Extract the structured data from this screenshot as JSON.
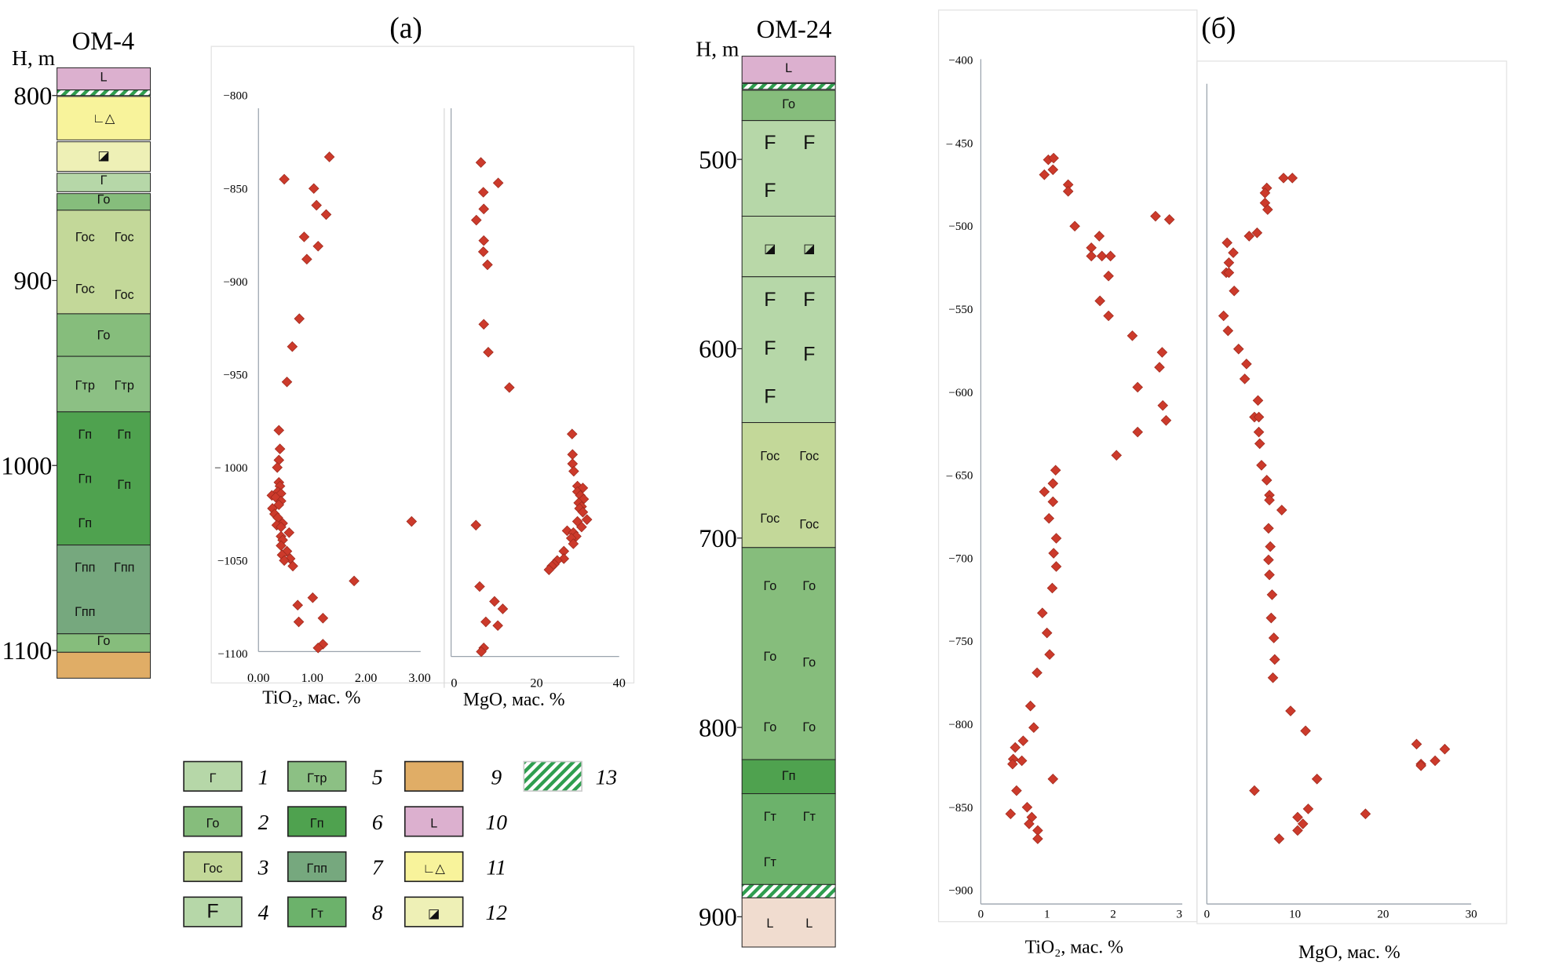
{
  "panel_labels": {
    "a": "(a)",
    "b": "(б)"
  },
  "columns": [
    {
      "name": "ОМ-4",
      "depth_label": "H, m",
      "ticks": [
        800,
        900,
        1000,
        1100
      ],
      "layers": [
        {
          "type": 10,
          "top": 785,
          "bottom": 797
        },
        {
          "type": 13,
          "top": 797,
          "bottom": 800
        },
        {
          "type": 11,
          "top": 800.5,
          "bottom": 824
        },
        {
          "type": 12,
          "top": 825,
          "bottom": 841
        },
        {
          "type": 1,
          "top": 842,
          "bottom": 852
        },
        {
          "type": 2,
          "top": 853,
          "bottom": 862
        },
        {
          "type": 3,
          "top": 862,
          "bottom": 918
        },
        {
          "type": 2,
          "top": 918,
          "bottom": 941
        },
        {
          "type": 5,
          "top": 941,
          "bottom": 971
        },
        {
          "type": 6,
          "top": 971,
          "bottom": 1043
        },
        {
          "type": 7,
          "top": 1043,
          "bottom": 1091
        },
        {
          "type": 2,
          "top": 1091,
          "bottom": 1101
        },
        {
          "type": 9,
          "top": 1101,
          "bottom": 1115
        }
      ]
    },
    {
      "name": "ОМ-24",
      "depth_label": "H, m",
      "ticks": [
        500,
        600,
        700,
        800,
        900
      ],
      "layers": [
        {
          "type": 10,
          "top": 445.5,
          "bottom": 459.5
        },
        {
          "type": 13,
          "top": 460,
          "bottom": 463
        },
        {
          "type": 2,
          "top": 463.5,
          "bottom": 479.5
        },
        {
          "type": 4,
          "top": 479.5,
          "bottom": 530
        },
        {
          "type": 12,
          "top": 530,
          "bottom": 562,
          "fill": "#b9d8a8"
        },
        {
          "type": 4,
          "top": 562,
          "bottom": 639
        },
        {
          "type": 3,
          "top": 639,
          "bottom": 705
        },
        {
          "type": 2,
          "top": 705,
          "bottom": 817
        },
        {
          "type": 6,
          "top": 817,
          "bottom": 835
        },
        {
          "type": 8,
          "top": 835,
          "bottom": 883
        },
        {
          "type": 13,
          "top": 883,
          "bottom": 890
        },
        {
          "type": 10,
          "top": 890,
          "bottom": 916,
          "fill": "#f0dccf"
        }
      ]
    }
  ],
  "legend": [
    {
      "num": "1",
      "symbol": "Г",
      "color": "#b6d7a8"
    },
    {
      "num": "2",
      "symbol": "Го",
      "color": "#86bd7c"
    },
    {
      "num": "3",
      "symbol": "Гос",
      "color": "#c3d899"
    },
    {
      "num": "4",
      "symbol": "F",
      "color": "#b6d7a8"
    },
    {
      "num": "5",
      "symbol": "Гтр",
      "color": "#8cc084"
    },
    {
      "num": "6",
      "symbol": "Гп",
      "color": "#4fa24f"
    },
    {
      "num": "7",
      "symbol": "Гпп",
      "color": "#76a87e"
    },
    {
      "num": "8",
      "symbol": "Гт",
      "color": "#6cb26b"
    },
    {
      "num": "9",
      "symbol": "",
      "color": "#e0ad66"
    },
    {
      "num": "10",
      "symbol": "L",
      "color": "#dcb0cf"
    },
    {
      "num": "11",
      "symbol": "∟△",
      "color": "#f8f39b"
    },
    {
      "num": "12",
      "symbol": "◪",
      "color": "#eef0b6"
    },
    {
      "num": "13",
      "symbol": "",
      "color": "#2f9e4f"
    }
  ],
  "marker_color": "#cc3a2b",
  "chart_data": [
    {
      "type": "scatter",
      "panel": "a",
      "xlabel": "TiO₂, мас. %",
      "ylabel": "",
      "xlim": [
        0,
        3
      ],
      "ylim": [
        -1100,
        -800
      ],
      "xticks": [
        "0.00",
        "1.00",
        "2.00",
        "3.00"
      ],
      "yticks": [
        "−800",
        "−850",
        "−900",
        "−950",
        "− 1000",
        "−1050",
        "−1100"
      ],
      "grid": false,
      "points": [
        [
          1.32,
          -833
        ],
        [
          0.48,
          -845
        ],
        [
          1.03,
          -850
        ],
        [
          1.08,
          -859
        ],
        [
          1.26,
          -864
        ],
        [
          0.85,
          -876
        ],
        [
          1.11,
          -881
        ],
        [
          0.9,
          -888
        ],
        [
          0.76,
          -920
        ],
        [
          0.63,
          -935
        ],
        [
          0.53,
          -954
        ],
        [
          0.38,
          -980
        ],
        [
          0.4,
          -990
        ],
        [
          0.38,
          -996
        ],
        [
          0.35,
          -1000
        ],
        [
          0.38,
          -1008
        ],
        [
          0.4,
          -1010
        ],
        [
          0.36,
          -1013
        ],
        [
          0.42,
          -1014
        ],
        [
          0.25,
          -1015
        ],
        [
          0.32,
          -1016
        ],
        [
          0.42,
          -1018
        ],
        [
          0.38,
          -1020
        ],
        [
          0.26,
          -1022
        ],
        [
          0.3,
          -1025
        ],
        [
          0.36,
          -1027
        ],
        [
          0.45,
          -1030
        ],
        [
          0.34,
          -1031
        ],
        [
          0.42,
          -1032
        ],
        [
          0.57,
          -1035
        ],
        [
          0.42,
          -1037
        ],
        [
          0.45,
          -1039
        ],
        [
          0.42,
          -1042
        ],
        [
          0.53,
          -1045
        ],
        [
          0.44,
          -1047
        ],
        [
          0.59,
          -1049
        ],
        [
          0.48,
          -1050
        ],
        [
          0.64,
          -1053
        ],
        [
          2.85,
          -1029
        ],
        [
          1.78,
          -1061
        ],
        [
          1.01,
          -1070
        ],
        [
          0.73,
          -1074
        ],
        [
          1.2,
          -1081
        ],
        [
          0.75,
          -1083
        ],
        [
          1.2,
          -1095
        ],
        [
          1.11,
          -1097
        ]
      ]
    },
    {
      "type": "scatter",
      "panel": "a",
      "xlabel": "MgO, мас. %",
      "ylabel": "",
      "xlim": [
        0,
        40
      ],
      "ylim": [
        -1100,
        -800
      ],
      "xticks": [
        "0",
        "20",
        "40"
      ],
      "grid": false,
      "points": [
        [
          6.5,
          -836
        ],
        [
          10.7,
          -847
        ],
        [
          7.1,
          -852
        ],
        [
          7.2,
          -861
        ],
        [
          5.4,
          -867
        ],
        [
          7.2,
          -878
        ],
        [
          7.1,
          -884
        ],
        [
          8.1,
          -891
        ],
        [
          7.2,
          -923
        ],
        [
          8.3,
          -938
        ],
        [
          13.4,
          -957
        ],
        [
          28.6,
          -982
        ],
        [
          28.7,
          -993
        ],
        [
          28.7,
          -998
        ],
        [
          29.0,
          -1002
        ],
        [
          29.9,
          -1010
        ],
        [
          31.2,
          -1011
        ],
        [
          29.9,
          -1013
        ],
        [
          30.6,
          -1015
        ],
        [
          31.4,
          -1017
        ],
        [
          30.2,
          -1019
        ],
        [
          30.9,
          -1021
        ],
        [
          30.4,
          -1022
        ],
        [
          31.2,
          -1024
        ],
        [
          32.2,
          -1028
        ],
        [
          29.9,
          -1029
        ],
        [
          30.9,
          -1032
        ],
        [
          27.4,
          -1034
        ],
        [
          28.9,
          -1035
        ],
        [
          29.6,
          -1037
        ],
        [
          28.4,
          -1038
        ],
        [
          28.9,
          -1041
        ],
        [
          26.6,
          -1045
        ],
        [
          26.6,
          -1049
        ],
        [
          25.0,
          -1050
        ],
        [
          24.3,
          -1052
        ],
        [
          23.7,
          -1053
        ],
        [
          23.0,
          -1055
        ],
        [
          5.3,
          -1031
        ],
        [
          6.2,
          -1064
        ],
        [
          9.8,
          -1072
        ],
        [
          11.8,
          -1076
        ],
        [
          7.7,
          -1083
        ],
        [
          10.6,
          -1085
        ],
        [
          7.2,
          -1097
        ],
        [
          6.6,
          -1099
        ]
      ]
    },
    {
      "type": "scatter",
      "panel": "b",
      "xlabel": "TiO₂, мас. %",
      "ylabel": "",
      "xlim": [
        0,
        3
      ],
      "ylim": [
        -900,
        -400
      ],
      "xticks": [
        "0",
        "1",
        "2",
        "3"
      ],
      "yticks": [
        "−400",
        "– 450",
        "−500",
        "−550",
        "−600",
        "– 650",
        "−700",
        "−750",
        "−800",
        "−850",
        "−900"
      ],
      "grid": false,
      "points": [
        [
          1.02,
          -460
        ],
        [
          1.1,
          -459
        ],
        [
          0.96,
          -469
        ],
        [
          1.09,
          -466
        ],
        [
          1.32,
          -475
        ],
        [
          1.32,
          -479
        ],
        [
          1.42,
          -500
        ],
        [
          2.64,
          -494
        ],
        [
          2.85,
          -496
        ],
        [
          1.79,
          -506
        ],
        [
          1.67,
          -513
        ],
        [
          1.67,
          -518
        ],
        [
          1.83,
          -518
        ],
        [
          1.96,
          -518
        ],
        [
          1.93,
          -530
        ],
        [
          1.8,
          -545
        ],
        [
          1.93,
          -554
        ],
        [
          2.29,
          -566
        ],
        [
          2.74,
          -576
        ],
        [
          2.7,
          -585
        ],
        [
          2.37,
          -597
        ],
        [
          2.75,
          -608
        ],
        [
          2.8,
          -617
        ],
        [
          2.37,
          -624
        ],
        [
          2.05,
          -638
        ],
        [
          1.13,
          -647
        ],
        [
          1.09,
          -655
        ],
        [
          0.96,
          -660
        ],
        [
          1.09,
          -666
        ],
        [
          1.03,
          -676
        ],
        [
          1.14,
          -688
        ],
        [
          1.1,
          -697
        ],
        [
          1.14,
          -705
        ],
        [
          1.08,
          -718
        ],
        [
          0.93,
          -733
        ],
        [
          1.0,
          -745
        ],
        [
          1.04,
          -758
        ],
        [
          0.85,
          -769
        ],
        [
          0.75,
          -789
        ],
        [
          0.8,
          -802
        ],
        [
          0.64,
          -810
        ],
        [
          0.52,
          -814
        ],
        [
          0.49,
          -821
        ],
        [
          0.62,
          -822
        ],
        [
          0.48,
          -824
        ],
        [
          1.09,
          -833
        ],
        [
          0.54,
          -840
        ],
        [
          0.7,
          -850
        ],
        [
          0.45,
          -854
        ],
        [
          0.77,
          -856
        ],
        [
          0.73,
          -860
        ],
        [
          0.86,
          -864
        ],
        [
          0.86,
          -869
        ]
      ]
    },
    {
      "type": "scatter",
      "panel": "b",
      "xlabel": "MgO, мас. %",
      "ylabel": "",
      "xlim": [
        0,
        30
      ],
      "ylim": [
        -900,
        -400
      ],
      "xticks": [
        "0",
        "10",
        "20",
        "30"
      ],
      "grid": false,
      "points": [
        [
          8.7,
          -471
        ],
        [
          9.7,
          -471
        ],
        [
          6.8,
          -477
        ],
        [
          6.6,
          -480
        ],
        [
          6.6,
          -486
        ],
        [
          6.9,
          -490
        ],
        [
          5.7,
          -504
        ],
        [
          4.8,
          -506
        ],
        [
          2.3,
          -510
        ],
        [
          3.0,
          -516
        ],
        [
          2.5,
          -522
        ],
        [
          2.2,
          -528
        ],
        [
          2.5,
          -528
        ],
        [
          3.1,
          -539
        ],
        [
          1.9,
          -554
        ],
        [
          2.4,
          -563
        ],
        [
          3.6,
          -574
        ],
        [
          4.5,
          -583
        ],
        [
          4.3,
          -592
        ],
        [
          5.8,
          -605
        ],
        [
          5.4,
          -615
        ],
        [
          5.9,
          -615
        ],
        [
          5.9,
          -624
        ],
        [
          6.0,
          -631
        ],
        [
          6.2,
          -644
        ],
        [
          6.8,
          -653
        ],
        [
          7.1,
          -662
        ],
        [
          7.1,
          -665
        ],
        [
          8.5,
          -671
        ],
        [
          7.0,
          -682
        ],
        [
          7.2,
          -693
        ],
        [
          7.0,
          -701
        ],
        [
          7.1,
          -710
        ],
        [
          7.4,
          -722
        ],
        [
          7.3,
          -736
        ],
        [
          7.6,
          -748
        ],
        [
          7.7,
          -761
        ],
        [
          7.5,
          -772
        ],
        [
          9.5,
          -792
        ],
        [
          11.2,
          -804
        ],
        [
          23.8,
          -812
        ],
        [
          27.0,
          -815
        ],
        [
          25.9,
          -822
        ],
        [
          24.3,
          -824
        ],
        [
          24.3,
          -825
        ],
        [
          12.5,
          -833
        ],
        [
          5.4,
          -840
        ],
        [
          11.5,
          -851
        ],
        [
          18.0,
          -854
        ],
        [
          10.3,
          -856
        ],
        [
          10.9,
          -860
        ],
        [
          10.3,
          -864
        ],
        [
          8.2,
          -869
        ]
      ]
    }
  ]
}
